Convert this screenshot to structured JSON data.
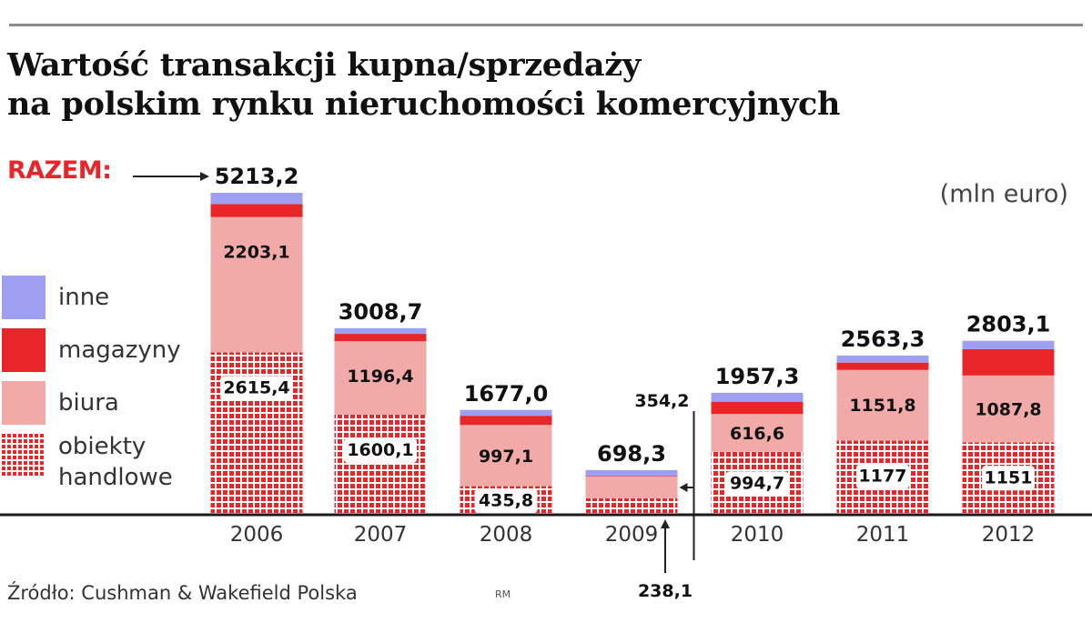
{
  "chart_data": {
    "type": "bar",
    "stacked": true,
    "title_lines": [
      "Wartość transakcji kupna/sprzedaży",
      "na polskim rynku nieruchomości komercyjnych"
    ],
    "unit": "(mln euro)",
    "total_label": "RAZEM:",
    "source": "Źródło: Cushman & Wakefield Polska",
    "signature": "RM",
    "categories": [
      "2006",
      "2007",
      "2008",
      "2009",
      "2010",
      "2011",
      "2012"
    ],
    "totals": [
      "5213,2",
      "3008,7",
      "1677,0",
      "698,3",
      "1957,3",
      "2563,3",
      "2803,1"
    ],
    "total_values": [
      5213.2,
      3008.7,
      1677.0,
      698.3,
      1957.3,
      2563.3,
      2803.1
    ],
    "series": [
      {
        "name": "obiekty handlowe",
        "key": "handlowe",
        "color": "#e8262a",
        "pattern": "dots",
        "values": [
          2615.4,
          1600.1,
          435.8,
          238.1,
          994.7,
          1177,
          1151
        ],
        "labels": [
          "2615,4",
          "1600,1",
          "435,8",
          "238,1",
          "994,7",
          "1177",
          "1151"
        ]
      },
      {
        "name": "biura",
        "key": "biura",
        "color": "#f2aaa8",
        "values": [
          2203.1,
          1196.4,
          997.1,
          354.2,
          616.6,
          1151.8,
          1087.8
        ],
        "labels": [
          "2203,1",
          "1196,4",
          "997,1",
          "354,2",
          "616,6",
          "1151,8",
          "1087,8"
        ]
      },
      {
        "name": "magazyny",
        "key": "magazyny",
        "color": "#e8262a",
        "values": [
          210,
          120,
          150,
          10,
          200,
          120,
          430
        ],
        "labels": []
      },
      {
        "name": "inne",
        "key": "inne",
        "color": "#9f9ff2",
        "values": [
          184.7,
          92.2,
          94.1,
          96,
          146,
          114.5,
          134.3
        ],
        "labels": []
      }
    ],
    "ylim": [
      0,
      5213.2
    ],
    "grid": false,
    "legend_position": "left"
  }
}
